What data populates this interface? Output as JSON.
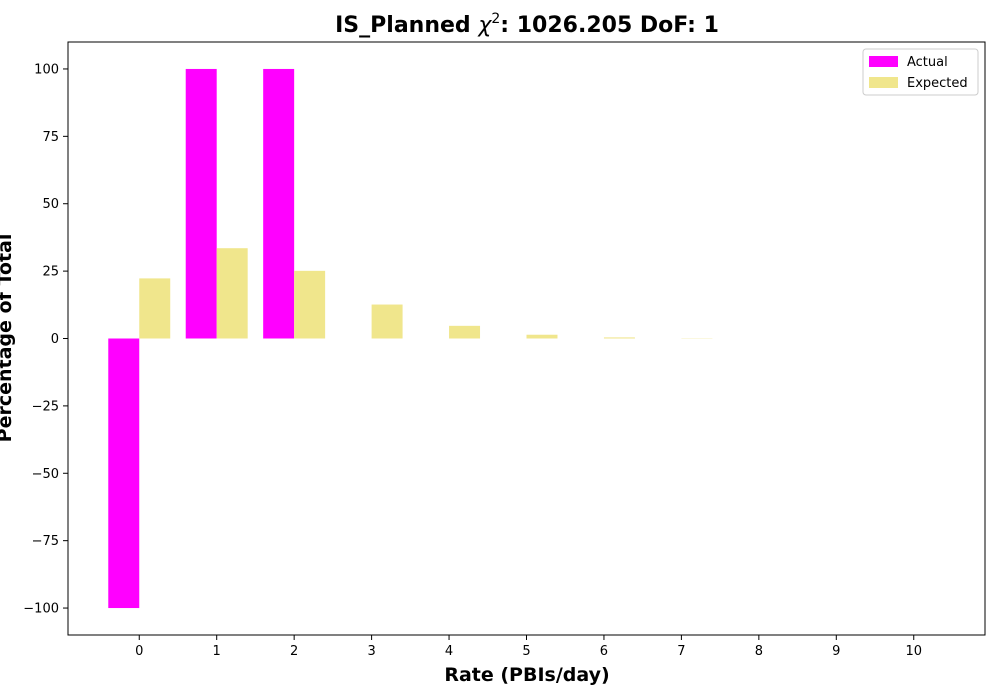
{
  "chart_data": {
    "type": "bar",
    "title": {
      "prefix": "IS_Planned ",
      "chi": "χ",
      "sup": "2",
      "suffix": ": 1026.205 DoF: 1"
    },
    "xlabel": "Rate (PBIs/day)",
    "ylabel": "Percentage of Total",
    "categories": [
      "0",
      "1",
      "2",
      "3",
      "4",
      "5",
      "6",
      "7",
      "8",
      "9",
      "10"
    ],
    "x": [
      0,
      1,
      2,
      3,
      4,
      5,
      6,
      7,
      8,
      9,
      10
    ],
    "xlim": [
      -0.92,
      10.92
    ],
    "ylim": [
      -110,
      110
    ],
    "yticks": [
      -100,
      -75,
      -50,
      -25,
      0,
      25,
      50,
      75,
      100
    ],
    "ytick_labels": [
      "−100",
      "−75",
      "−50",
      "−25",
      "0",
      "25",
      "50",
      "75",
      "100"
    ],
    "bar_width": 0.4,
    "series": [
      {
        "name": "Actual",
        "color": "#ff00ff",
        "offset": -0.2,
        "values": [
          -100,
          100,
          100,
          0,
          0,
          0,
          0,
          0,
          0,
          0,
          0
        ]
      },
      {
        "name": "Expected",
        "color": "#f0e68c",
        "offset": 0.2,
        "values": [
          22.3,
          33.5,
          25.1,
          12.6,
          4.7,
          1.4,
          0.4,
          0.1,
          0.0,
          0.0,
          0.0
        ]
      }
    ],
    "legend": "top-right",
    "grid": false
  }
}
